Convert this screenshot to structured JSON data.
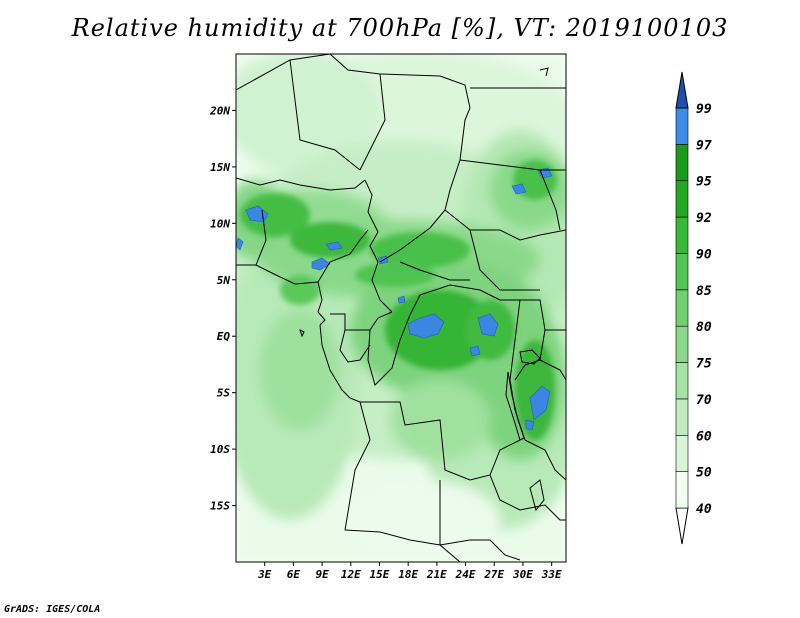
{
  "title": "Relative humidity at 700hPa [%], VT: 2019100103",
  "credit": "GrADS: IGES/COLA",
  "map": {
    "lon_range": [
      0,
      34.5
    ],
    "lat_range": [
      -20,
      25
    ],
    "lat_ticks": [
      {
        "value": 20,
        "label": "20N"
      },
      {
        "value": 15,
        "label": "15N"
      },
      {
        "value": 10,
        "label": "10N"
      },
      {
        "value": 5,
        "label": "5N"
      },
      {
        "value": 0,
        "label": "EQ"
      },
      {
        "value": -5,
        "label": "5S"
      },
      {
        "value": -10,
        "label": "10S"
      },
      {
        "value": -15,
        "label": "15S"
      }
    ],
    "lon_ticks": [
      {
        "value": 3,
        "label": "3E"
      },
      {
        "value": 6,
        "label": "6E"
      },
      {
        "value": 9,
        "label": "9E"
      },
      {
        "value": 12,
        "label": "12E"
      },
      {
        "value": 15,
        "label": "15E"
      },
      {
        "value": 18,
        "label": "18E"
      },
      {
        "value": 21,
        "label": "21E"
      },
      {
        "value": 24,
        "label": "24E"
      },
      {
        "value": 27,
        "label": "27E"
      },
      {
        "value": 30,
        "label": "30E"
      },
      {
        "value": 33,
        "label": "33E"
      }
    ]
  },
  "colorbar": {
    "levels": [
      "40",
      "50",
      "60",
      "70",
      "75",
      "80",
      "85",
      "90",
      "92",
      "95",
      "97",
      "99"
    ],
    "colors": [
      "#f0fff0",
      "#d8f5d8",
      "#c0ecc0",
      "#a4e3a4",
      "#8ad98a",
      "#6ed06e",
      "#52c652",
      "#38b838",
      "#22a822",
      "#1a9a1a",
      "#3c8ce8",
      "#2266cc",
      "#1a50b0"
    ]
  }
}
